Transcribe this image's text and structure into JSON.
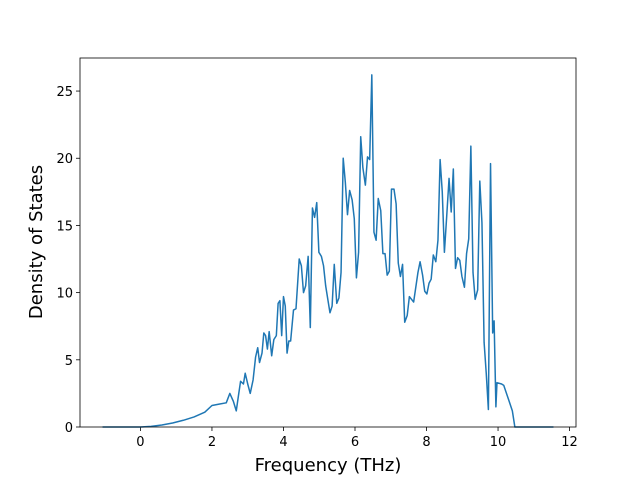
{
  "chart_data": {
    "type": "line",
    "xlabel": "Frequency (THz)",
    "ylabel": "Density of States",
    "color": "#1f77b4",
    "xlim": [
      -1.69,
      12.18
    ],
    "ylim": [
      0,
      27.46
    ],
    "xticks": [
      0,
      2,
      4,
      6,
      8,
      10,
      12
    ],
    "yticks": [
      0,
      5,
      10,
      15,
      20,
      25
    ],
    "x": [
      -1.06,
      -0.5,
      0,
      0.3,
      0.6,
      0.9,
      1.2,
      1.5,
      1.8,
      2.0,
      2.2,
      2.4,
      2.5,
      2.6,
      2.68,
      2.75,
      2.8,
      2.88,
      2.93,
      3.0,
      3.07,
      3.15,
      3.22,
      3.28,
      3.33,
      3.4,
      3.45,
      3.5,
      3.55,
      3.6,
      3.67,
      3.73,
      3.8,
      3.85,
      3.9,
      3.95,
      4.0,
      4.05,
      4.1,
      4.15,
      4.2,
      4.28,
      4.35,
      4.44,
      4.5,
      4.56,
      4.62,
      4.69,
      4.75,
      4.81,
      4.87,
      4.93,
      4.99,
      5.06,
      5.12,
      5.18,
      5.24,
      5.3,
      5.36,
      5.42,
      5.49,
      5.55,
      5.61,
      5.67,
      5.73,
      5.79,
      5.85,
      5.92,
      5.98,
      6.04,
      6.1,
      6.16,
      6.22,
      6.29,
      6.35,
      6.41,
      6.47,
      6.53,
      6.59,
      6.65,
      6.72,
      6.78,
      6.84,
      6.9,
      6.96,
      7.02,
      7.09,
      7.15,
      7.21,
      7.27,
      7.33,
      7.39,
      7.46,
      7.52,
      7.58,
      7.64,
      7.76,
      7.82,
      7.89,
      7.95,
      8.01,
      8.07,
      8.13,
      8.19,
      8.26,
      8.32,
      8.38,
      8.44,
      8.5,
      8.56,
      8.63,
      8.69,
      8.75,
      8.81,
      8.87,
      8.93,
      8.99,
      9.06,
      9.12,
      9.18,
      9.24,
      9.3,
      9.36,
      9.43,
      9.49,
      9.55,
      9.61,
      9.67,
      9.73,
      9.79,
      9.85,
      9.89,
      9.94,
      9.97,
      10.1,
      10.16,
      10.3,
      10.4,
      10.47,
      11.55
    ],
    "values": [
      0,
      0,
      0,
      0.05,
      0.15,
      0.3,
      0.5,
      0.75,
      1.1,
      1.6,
      1.7,
      1.8,
      2.5,
      1.9,
      1.2,
      2.5,
      3.4,
      3.2,
      4.0,
      3.2,
      2.5,
      3.5,
      5.2,
      5.9,
      4.8,
      5.5,
      7.0,
      6.8,
      5.8,
      7.1,
      5.3,
      6.5,
      6.8,
      9.2,
      9.4,
      6.8,
      9.7,
      9.0,
      5.5,
      6.4,
      6.4,
      8.7,
      8.8,
      12.5,
      12.0,
      10.0,
      10.5,
      12.7,
      7.4,
      16.3,
      15.6,
      16.7,
      13.0,
      12.7,
      12.0,
      10.5,
      9.5,
      8.5,
      9.0,
      12.1,
      9.2,
      9.6,
      11.5,
      20.0,
      18.2,
      15.8,
      17.6,
      16.9,
      15.5,
      11.1,
      13.0,
      21.6,
      19.3,
      18.0,
      20.1,
      19.9,
      26.2,
      14.5,
      13.9,
      17.0,
      16.1,
      12.9,
      12.9,
      11.3,
      11.6,
      17.7,
      17.7,
      16.6,
      12.2,
      11.2,
      12.1,
      7.8,
      8.3,
      9.7,
      9.5,
      9.3,
      11.5,
      12.3,
      11.3,
      10.1,
      9.9,
      10.7,
      11.0,
      12.8,
      12.3,
      13.9,
      19.9,
      17.5,
      13.0,
      15.5,
      18.5,
      16.0,
      19.2,
      11.8,
      12.6,
      12.4,
      11.2,
      10.4,
      12.9,
      14.0,
      20.9,
      11.5,
      9.5,
      10.2,
      18.3,
      15.2,
      6.3,
      4.0,
      1.3,
      19.6,
      7.0,
      7.9,
      1.5,
      3.3,
      3.2,
      3.1,
      2.0,
      1.2,
      0,
      0
    ]
  }
}
